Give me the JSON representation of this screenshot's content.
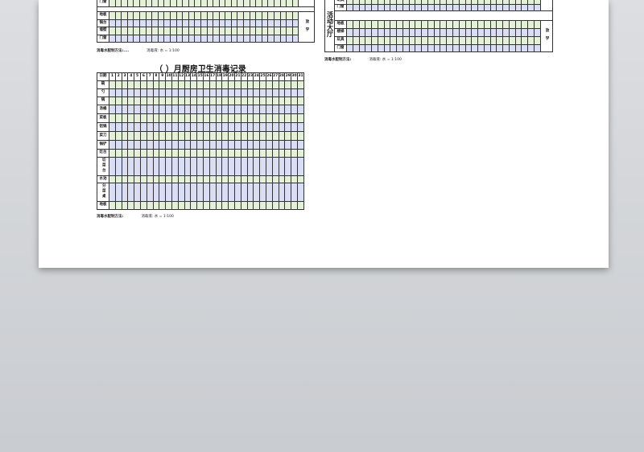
{
  "days": [
    "1",
    "2",
    "3",
    "4",
    "5",
    "6",
    "7",
    "8",
    "9",
    "10",
    "11",
    "12",
    "13",
    "14",
    "15",
    "16",
    "17",
    "18",
    "19",
    "20",
    "21",
    "22",
    "23",
    "24",
    "25",
    "26",
    "27",
    "28",
    "29",
    "30",
    "31"
  ],
  "colors": {
    "green_row": "#e4f0d8",
    "blue_row": "#d9def5",
    "border": "#222222"
  },
  "top_left_table": {
    "rows": [
      "门窗",
      "",
      "地板",
      "锅台",
      "墙壁",
      "门窗"
    ],
    "side_label": "放 学",
    "note_label": "消毒水配制方法:....",
    "note_value": "消毒液: 水 = 1:100"
  },
  "top_right_table": {
    "section_label": "活动大厅",
    "rows": [
      "玩具",
      "门窗",
      "",
      "地板",
      "楼梯",
      "玩具",
      "门窗"
    ],
    "side_label_top": "学",
    "side_label": "放 学",
    "note_label": "消毒水配制方法:",
    "note_value": "消毒液: 水 = 1:100"
  },
  "kitchen_table": {
    "title": "（    ）月厨房卫生消毒记录",
    "header_label": "日期",
    "rows": [
      "碗",
      "勺",
      "锅",
      "汤桶",
      "菜板",
      "铝锅",
      "菜刀",
      "锅铲",
      "灶台",
      "切菜台",
      "水池",
      "分菜桌",
      "地板"
    ],
    "note_label": "消毒水配制方法:",
    "note_value": "消毒液: 水 = 1:100"
  }
}
